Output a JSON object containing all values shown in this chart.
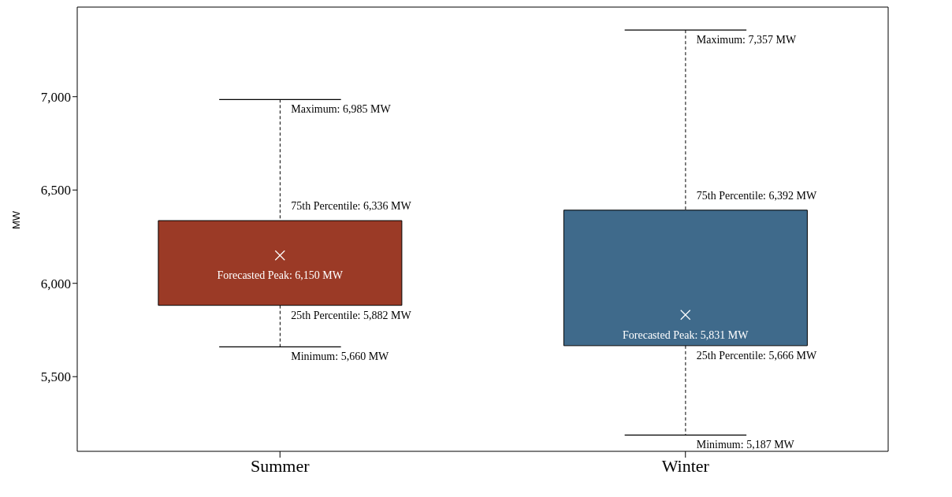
{
  "chart_data": {
    "type": "box",
    "ylabel": "MW",
    "categories": [
      "Summer",
      "Winter"
    ],
    "boxes": [
      {
        "low": 5660,
        "q1": 5882,
        "q3": 6336,
        "high": 6985
      },
      {
        "low": 5187,
        "q1": 5666,
        "q3": 6392,
        "high": 7357
      }
    ],
    "colors": [
      "#9b3a26",
      "#3f6a8b"
    ],
    "series": [
      {
        "type": "scatter",
        "x": [
          "Summer",
          "Winter"
        ],
        "values": [
          6150,
          5831
        ],
        "color": "#ffffff",
        "marker": "cross"
      }
    ],
    "ylim": [
      5100,
      7480
    ],
    "yticks": [
      {
        "value": 5500,
        "label": "5,500"
      },
      {
        "value": 6000,
        "label": "6,000"
      },
      {
        "value": 6500,
        "label": "6,500"
      },
      {
        "value": 7000,
        "label": "7,000"
      }
    ],
    "legend": false,
    "annotations": [
      {
        "text": "Maximum: 6,985 MW",
        "x": "Summer",
        "y": 6985
      },
      {
        "text": "75th Percentile: 6,336 MW",
        "x": "Summer",
        "y": 6336
      },
      {
        "text": "Forecasted Peak: 6,150 MW",
        "x": "Summer",
        "y": 6150
      },
      {
        "text": "25th Percentile: 5,882 MW",
        "x": "Summer",
        "y": 5882
      },
      {
        "text": "Minimum: 5,660 MW",
        "x": "Summer",
        "y": 5660
      },
      {
        "text": "Maximum: 7,357 MW",
        "x": "Winter",
        "y": 7357
      },
      {
        "text": "75th Percentile: 6,392 MW",
        "x": "Winter",
        "y": 6392
      },
      {
        "text": "Forecasted Peak: 5,831 MW",
        "x": "Winter",
        "y": 5831
      },
      {
        "text": "25th Percentile: 5,666 MW",
        "x": "Winter",
        "y": 5666
      },
      {
        "text": "Minimum: 5,187 MW",
        "x": "Winter",
        "y": 5187
      }
    ]
  }
}
